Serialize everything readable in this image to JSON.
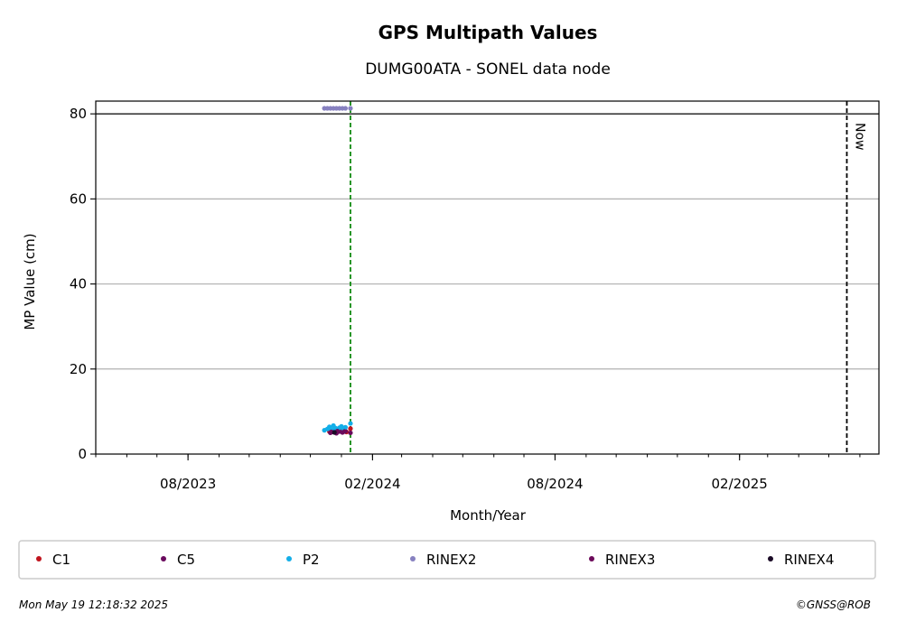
{
  "chart_data": {
    "type": "scatter",
    "title": "GPS Multipath Values",
    "subtitle": "DUMG00ATA - SONEL data node",
    "xlabel": "Month/Year",
    "ylabel": "MP Value (cm)",
    "ylim": [
      0,
      83
    ],
    "xlim": [
      "2023-05-01",
      "2025-06-20"
    ],
    "y_ticks": [
      0,
      20,
      40,
      60,
      80
    ],
    "x_ticks": [
      {
        "date": "2023-08-01",
        "label": "08/2023"
      },
      {
        "date": "2024-02-01",
        "label": "02/2024"
      },
      {
        "date": "2024-08-01",
        "label": "08/2024"
      },
      {
        "date": "2025-02-01",
        "label": "02/2025"
      }
    ],
    "grid": "y",
    "threshold_line": 80,
    "now_line": {
      "date": "2025-05-19",
      "label": "Now"
    },
    "event_line": {
      "date": "2024-01-10"
    },
    "legend_position": "bottom",
    "series": [
      {
        "name": "C1",
        "color": "#c0141e",
        "points": [
          [
            "2023-12-20",
            5.3
          ],
          [
            "2023-12-23",
            5.5
          ],
          [
            "2023-12-26",
            5.1
          ],
          [
            "2023-12-29",
            5.6
          ],
          [
            "2024-01-01",
            5.4
          ],
          [
            "2024-01-03",
            5.8
          ],
          [
            "2024-01-06",
            5.2
          ],
          [
            "2024-01-10",
            6.0
          ]
        ]
      },
      {
        "name": "C5",
        "color": "#6a0a5e",
        "points": [
          [
            "2023-12-21",
            5.0
          ],
          [
            "2023-12-24",
            5.2
          ],
          [
            "2023-12-27",
            4.9
          ],
          [
            "2023-12-30",
            5.3
          ],
          [
            "2024-01-02",
            5.1
          ],
          [
            "2024-01-05",
            5.4
          ],
          [
            "2024-01-10",
            5.0
          ]
        ]
      },
      {
        "name": "P2",
        "color": "#13aee8",
        "points": [
          [
            "2023-12-15",
            5.6
          ],
          [
            "2023-12-18",
            5.9
          ],
          [
            "2023-12-20",
            6.4
          ],
          [
            "2023-12-22",
            5.8
          ],
          [
            "2023-12-24",
            6.7
          ],
          [
            "2023-12-26",
            6.1
          ],
          [
            "2023-12-28",
            5.7
          ],
          [
            "2023-12-30",
            6.2
          ],
          [
            "2024-01-01",
            6.5
          ],
          [
            "2024-01-03",
            6.0
          ],
          [
            "2024-01-05",
            6.3
          ],
          [
            "2024-01-10",
            7.2
          ]
        ]
      },
      {
        "name": "RINEX2",
        "color": "#8781c0",
        "points": [
          [
            "2023-12-15",
            81.3
          ],
          [
            "2023-12-18",
            81.3
          ],
          [
            "2023-12-21",
            81.3
          ],
          [
            "2023-12-24",
            81.3
          ],
          [
            "2023-12-27",
            81.3
          ],
          [
            "2023-12-30",
            81.3
          ],
          [
            "2024-01-02",
            81.3
          ],
          [
            "2024-01-05",
            81.3
          ],
          [
            "2024-01-10",
            81.3
          ]
        ]
      },
      {
        "name": "RINEX3",
        "color": "#6c0a5a",
        "points": [
          [
            "2023-12-22",
            5.2
          ],
          [
            "2023-12-28",
            5.4
          ],
          [
            "2024-01-04",
            5.3
          ]
        ]
      },
      {
        "name": "RINEX4",
        "color": "#1a0a26",
        "points": [
          [
            "2023-12-25",
            5.1
          ]
        ]
      }
    ]
  },
  "footer": {
    "timestamp": "Mon May 19 12:18:32 2025",
    "credit": "©GNSS@ROB"
  }
}
